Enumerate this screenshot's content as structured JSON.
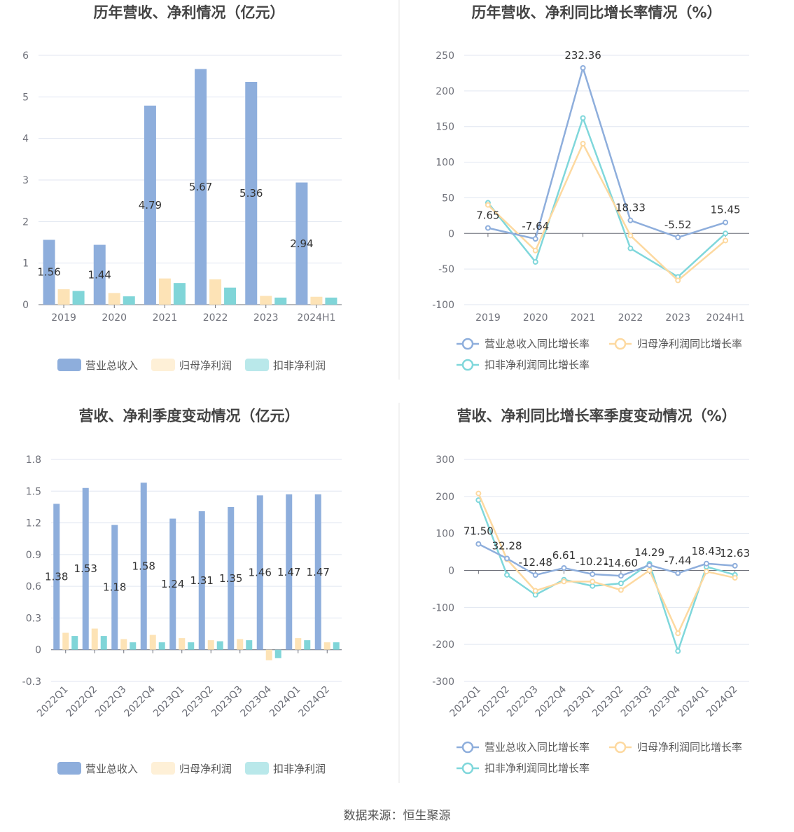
{
  "source_text": "数据来源：恒生聚源",
  "legend_bars": [
    "营业总收入",
    "归母净利润",
    "扣非净利润"
  ],
  "legend_lines": [
    "营业总收入同比增长率",
    "归母净利润同比增长率",
    "扣非净利润同比增长率"
  ],
  "colors": {
    "revenue": "#8eaedc",
    "net": "#fde3b6",
    "deduct": "#80d5d8",
    "revenue_line": "#8eaedc",
    "net_line": "#fdd9a0",
    "deduct_line": "#7fd7db"
  },
  "chart_data": [
    {
      "type": "bar",
      "title": "历年营收、净利情况（亿元）",
      "categories": [
        "2019",
        "2020",
        "2021",
        "2022",
        "2023",
        "2024H1"
      ],
      "ylim": [
        0,
        6
      ],
      "yticks": [
        0,
        1,
        2,
        3,
        4,
        5,
        6
      ],
      "series": [
        {
          "name": "营业总收入",
          "values": [
            1.56,
            1.44,
            4.79,
            5.67,
            5.36,
            2.94
          ],
          "labels": [
            "1.56",
            "1.44",
            "4.79",
            "5.67",
            "5.36",
            "2.94"
          ]
        },
        {
          "name": "归母净利润",
          "values": [
            0.37,
            0.28,
            0.63,
            0.61,
            0.21,
            0.19
          ]
        },
        {
          "name": "扣非净利润",
          "values": [
            0.33,
            0.2,
            0.52,
            0.41,
            0.17,
            0.17
          ]
        }
      ]
    },
    {
      "type": "line",
      "title": "历年营收、净利同比增长率情况（%）",
      "categories": [
        "2019",
        "2020",
        "2021",
        "2022",
        "2023",
        "2024H1"
      ],
      "ylim": [
        -100,
        250
      ],
      "yticks": [
        -100,
        -50,
        0,
        50,
        100,
        150,
        200,
        250
      ],
      "series": [
        {
          "name": "营业总收入同比增长率",
          "values": [
            7.65,
            -7.64,
            232.36,
            18.33,
            -5.52,
            15.45
          ],
          "labels": [
            "7.65",
            "-7.64",
            "232.36",
            "18.33",
            "-5.52",
            "15.45"
          ]
        },
        {
          "name": "归母净利润同比增长率",
          "values": [
            40,
            -24,
            126,
            -3,
            -66,
            -10
          ]
        },
        {
          "name": "扣非净利润同比增长率",
          "values": [
            43,
            -40,
            162,
            -21,
            -61,
            0
          ]
        }
      ]
    },
    {
      "type": "bar",
      "title": "营收、净利季度变动情况（亿元）",
      "categories": [
        "2022Q1",
        "2022Q2",
        "2022Q3",
        "2022Q4",
        "2023Q1",
        "2023Q2",
        "2023Q3",
        "2023Q4",
        "2024Q1",
        "2024Q2"
      ],
      "ylim": [
        -0.3,
        1.8
      ],
      "yticks": [
        -0.3,
        0,
        0.3,
        0.6,
        0.9,
        1.2,
        1.5,
        1.8
      ],
      "series": [
        {
          "name": "营业总收入",
          "values": [
            1.38,
            1.53,
            1.18,
            1.58,
            1.24,
            1.31,
            1.35,
            1.46,
            1.47,
            1.47
          ],
          "labels": [
            "1.38",
            "1.53",
            "1.18",
            "1.58",
            "1.24",
            "1.31",
            "1.35",
            "1.46",
            "1.47",
            "1.47"
          ]
        },
        {
          "name": "归母净利润",
          "values": [
            0.16,
            0.2,
            0.1,
            0.14,
            0.11,
            0.09,
            0.1,
            -0.1,
            0.11,
            0.07
          ]
        },
        {
          "name": "扣非净利润",
          "values": [
            0.13,
            0.13,
            0.07,
            0.07,
            0.07,
            0.08,
            0.09,
            -0.08,
            0.09,
            0.07
          ]
        }
      ]
    },
    {
      "type": "line",
      "title": "营收、净利同比增长率季度变动情况（%）",
      "categories": [
        "2022Q1",
        "2022Q2",
        "2022Q3",
        "2022Q4",
        "2023Q1",
        "2023Q2",
        "2023Q3",
        "2023Q4",
        "2024Q1",
        "2024Q2"
      ],
      "ylim": [
        -300,
        300
      ],
      "yticks": [
        -300,
        -200,
        -100,
        0,
        100,
        200,
        300
      ],
      "series": [
        {
          "name": "营业总收入同比增长率",
          "values": [
            71.5,
            32.28,
            -12.48,
            6.61,
            -10.21,
            -14.6,
            14.29,
            -7.44,
            18.43,
            12.63
          ],
          "labels": [
            "71.50",
            "32.28",
            "-12.48",
            "6.61",
            "-10.21",
            "-14.60",
            "14.29",
            "-7.44",
            "18.43",
            "12.63"
          ]
        },
        {
          "name": "归母净利润同比增长率",
          "values": [
            208,
            30,
            -55,
            -30,
            -30,
            -53,
            0,
            -170,
            -3,
            -20
          ]
        },
        {
          "name": "扣非净利润同比增长率",
          "values": [
            190,
            -12,
            -66,
            -25,
            -42,
            -35,
            18,
            -218,
            10,
            -12
          ]
        }
      ]
    }
  ]
}
